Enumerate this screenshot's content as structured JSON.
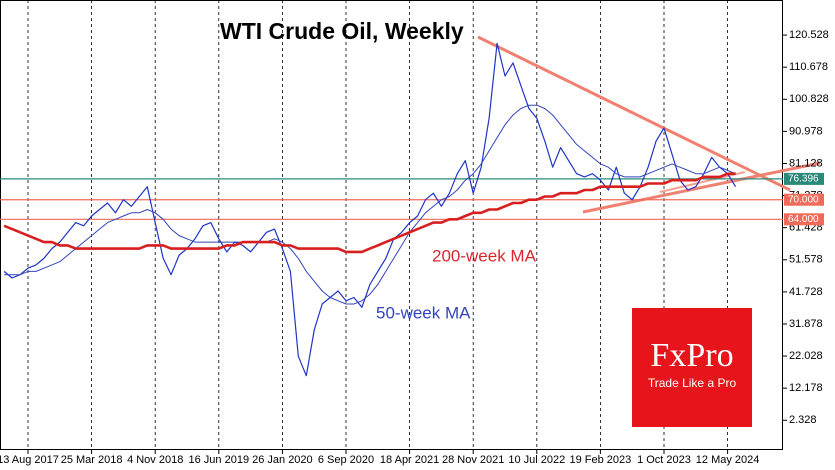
{
  "chart_data": {
    "type": "line",
    "title": "WTI Crude Oil, Weekly",
    "categories": [
      null,
      null,
      null,
      "13 Aug 2017",
      null,
      null,
      null,
      null,
      null,
      null,
      null,
      "25 Mar 2018",
      null,
      null,
      null,
      null,
      null,
      null,
      null,
      "4 Nov 2018",
      null,
      null,
      null,
      null,
      null,
      null,
      null,
      "16 Jun 2019",
      null,
      null,
      null,
      null,
      null,
      null,
      null,
      "26 Jan 2020",
      null,
      null,
      null,
      null,
      null,
      null,
      null,
      "6 Sep 2020",
      null,
      null,
      null,
      null,
      null,
      null,
      null,
      "18 Apr 2021",
      null,
      null,
      null,
      null,
      null,
      null,
      null,
      "28 Nov 2021",
      null,
      null,
      null,
      null,
      null,
      null,
      null,
      "10 Jul 2022",
      null,
      null,
      null,
      null,
      null,
      null,
      null,
      "19 Feb 2023",
      null,
      null,
      null,
      null,
      null,
      null,
      null,
      "1 Oct 2023",
      null,
      null,
      null,
      null,
      null,
      null,
      null,
      "12 May 2024",
      null
    ],
    "series": [
      {
        "name": "WTI",
        "color": "#1f35c8",
        "values": [
          48,
          46,
          47,
          49,
          50,
          52,
          55,
          57,
          60,
          63,
          62,
          65,
          67,
          69,
          66,
          70,
          68,
          71,
          74,
          63,
          52,
          47,
          53,
          55,
          58,
          62,
          63,
          58,
          54,
          57,
          56,
          54,
          57,
          60,
          61,
          55,
          48,
          22,
          16,
          30,
          38,
          40,
          42,
          39,
          40,
          37,
          44,
          48,
          52,
          58,
          60,
          63,
          65,
          70,
          72,
          68,
          72,
          78,
          82,
          72,
          80,
          95,
          118,
          108,
          112,
          105,
          98,
          95,
          88,
          80,
          86,
          82,
          78,
          77,
          78,
          76,
          73,
          80,
          72,
          70,
          74,
          80,
          88,
          92,
          84,
          76,
          73,
          74,
          78,
          83,
          80,
          78,
          74
        ]
      },
      {
        "name": "50-week MA",
        "color": "#3344bb",
        "values": [
          47,
          47,
          47,
          48,
          48,
          49,
          50,
          51,
          53,
          55,
          57,
          59,
          61,
          63,
          64,
          65,
          66,
          66,
          67,
          66,
          64,
          61,
          59,
          58,
          57,
          57,
          57,
          57,
          57,
          57,
          57,
          57,
          57,
          57,
          58,
          57,
          55,
          52,
          48,
          45,
          42,
          40,
          39,
          38,
          38,
          39,
          41,
          44,
          48,
          52,
          56,
          60,
          63,
          66,
          68,
          70,
          71,
          73,
          76,
          78,
          81,
          85,
          89,
          93,
          96,
          98,
          99,
          99,
          98,
          96,
          93,
          90,
          87,
          85,
          83,
          81,
          80,
          78,
          77,
          77,
          77,
          78,
          79,
          80,
          81,
          80,
          79,
          78,
          78,
          79,
          80,
          79,
          78
        ]
      },
      {
        "name": "200-week MA",
        "color": "#d81e1e",
        "values": [
          62,
          61,
          60,
          59,
          58,
          57,
          57,
          56,
          56,
          55,
          55,
          55,
          55,
          55,
          55,
          55,
          55,
          55,
          56,
          56,
          56,
          55,
          55,
          55,
          55,
          55,
          55,
          55,
          56,
          56,
          57,
          57,
          57,
          57,
          57,
          56,
          56,
          55,
          55,
          55,
          55,
          55,
          55,
          54,
          54,
          54,
          55,
          56,
          57,
          58,
          59,
          60,
          61,
          62,
          63,
          63,
          64,
          64,
          65,
          66,
          66,
          67,
          67,
          68,
          69,
          69,
          70,
          70,
          71,
          71,
          72,
          72,
          72,
          73,
          73,
          74,
          74,
          74,
          74,
          74,
          74,
          75,
          75,
          75,
          76,
          76,
          76,
          76,
          77,
          77,
          77,
          78,
          78
        ]
      }
    ],
    "ylim": [
      -6.8,
      131.3
    ],
    "yticks": [
      2.328,
      12.178,
      22.028,
      31.878,
      41.728,
      51.578,
      61.428,
      71.278,
      81.128,
      90.978,
      100.828,
      110.678,
      120.528
    ],
    "levels": [
      {
        "price": 76.396,
        "color": "#2a8a7a"
      },
      {
        "price": {
          "value": 70,
          "label": "70.000"
        },
        "color": "#f06a5a"
      },
      {
        "price": {
          "value": 64,
          "label": "64.000"
        },
        "color": "#f06a5a"
      }
    ],
    "grid": true
  },
  "logo": {
    "brand": "FxPro",
    "slogan": "Trade Like a Pro"
  }
}
